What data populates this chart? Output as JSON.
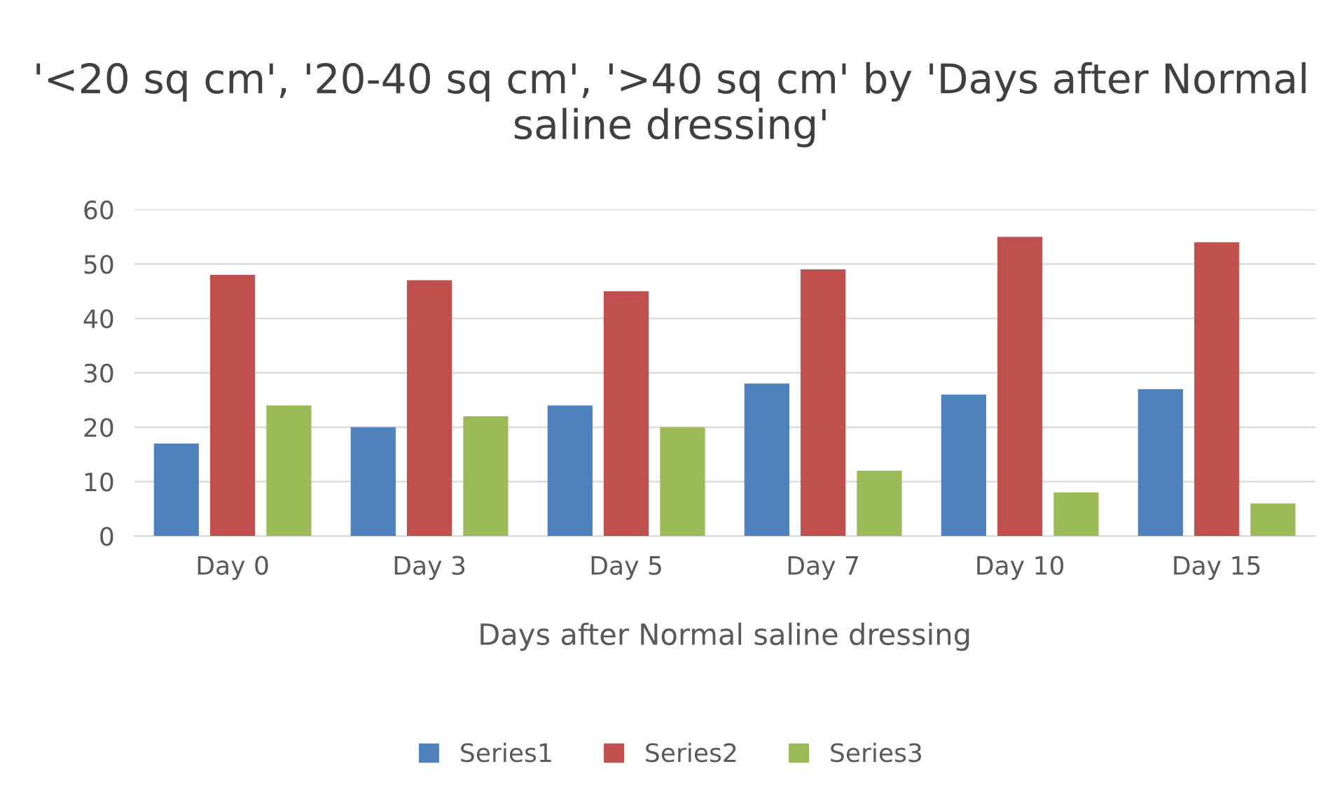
{
  "chart_data": {
    "type": "bar",
    "title": "'<20 sq cm', '20-40 sq cm', '>40 sq cm' by 'Days after Normal saline dressing'",
    "xlabel": "Days after Normal saline dressing",
    "categories": [
      "Day 0",
      "Day 3",
      "Day 5",
      "Day 7",
      "Day 10",
      "Day 15"
    ],
    "series": [
      {
        "name": "Series1",
        "color": "#4f81bd",
        "values": [
          17,
          20,
          24,
          28,
          26,
          27
        ]
      },
      {
        "name": "Series2",
        "color": "#c0504d",
        "values": [
          48,
          47,
          45,
          49,
          55,
          54
        ]
      },
      {
        "name": "Series3",
        "color": "#9bbb59",
        "values": [
          24,
          22,
          20,
          12,
          8,
          6
        ]
      }
    ],
    "ylim": [
      0,
      60
    ],
    "yticks": [
      0,
      10,
      20,
      30,
      40,
      50,
      60
    ],
    "grid": "y",
    "legend": "bottom"
  }
}
